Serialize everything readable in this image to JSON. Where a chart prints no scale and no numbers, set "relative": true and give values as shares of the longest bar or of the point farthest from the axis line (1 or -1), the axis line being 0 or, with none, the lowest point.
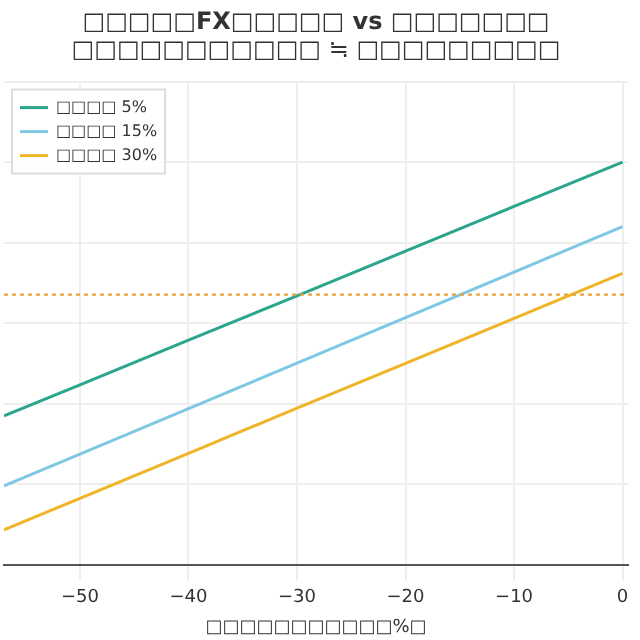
{
  "chart_data": {
    "type": "line",
    "title": "□□□□□FX□□□□□ vs □□□□□□□",
    "subtitle": "□□□□□□□□□□□ ≒ □□□□□□□□□",
    "xlabel": "□□□□□□□□□□□%□",
    "relative": true,
    "xlim": [
      -57,
      0.5
    ],
    "xticks": [
      {
        "value": -50,
        "label": "−50"
      },
      {
        "value": -40,
        "label": "−40"
      },
      {
        "value": -30,
        "label": "−30"
      },
      {
        "value": -20,
        "label": "−20"
      },
      {
        "value": -10,
        "label": "−10"
      },
      0
    ],
    "series": [
      {
        "name": "□□□□ 5%",
        "color": "#2ca58d",
        "x": [
          -57,
          -50,
          -40,
          -30,
          -20,
          -10,
          0
        ],
        "values": [
          0.37,
          0.447,
          0.558,
          0.668,
          0.779,
          0.89,
          1.0
        ]
      },
      {
        "name": "□□□□ 15%",
        "color": "#7ec8e3",
        "x": [
          -57,
          -50,
          -40,
          -30,
          -20,
          -10,
          0
        ],
        "values": [
          0.196,
          0.275,
          0.388,
          0.501,
          0.614,
          0.727,
          0.84
        ]
      },
      {
        "name": "□□□□ 30%",
        "color": "#f0b429",
        "x": [
          -57,
          -50,
          -40,
          -30,
          -20,
          -10,
          0
        ],
        "values": [
          0.087,
          0.165,
          0.277,
          0.389,
          0.5,
          0.612,
          0.724
        ]
      }
    ],
    "ref_lines": [
      {
        "axis": "y",
        "value": 0.671,
        "color": "#e8a33a",
        "line_style": "dotted"
      }
    ],
    "grid": true,
    "legend": "top left",
    "line_style": "solid",
    "marker": "none"
  }
}
